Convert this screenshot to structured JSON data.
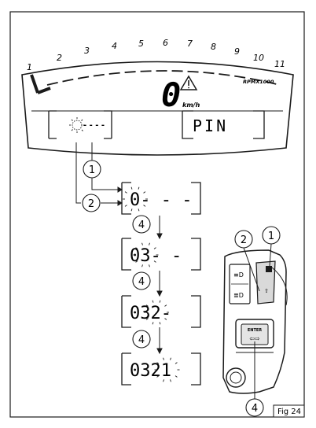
{
  "dashboard": {
    "rpm_scale": [
      "1",
      "2",
      "3",
      "4",
      "5",
      "6",
      "7",
      "8",
      "9",
      "10",
      "11"
    ],
    "rpm_unit": "RPMX1000",
    "speed_value": "0",
    "speed_unit": "km/h"
  },
  "left_display": {
    "text": "- - - -"
  },
  "right_display": {
    "text": "PIN"
  },
  "callouts": {
    "c1": "1",
    "c2": "2",
    "step4_a": "4",
    "step4_b": "4",
    "step4_c": "4",
    "switch_1": "1",
    "switch_2": "2",
    "switch_4": "4"
  },
  "sequence": [
    {
      "digits": "0- - -",
      "blink_index": 0
    },
    {
      "digits": "03- -",
      "blink_index": 1
    },
    {
      "digits": "032-",
      "blink_index": 2
    },
    {
      "digits": "0321",
      "blink_index": 3
    }
  ],
  "switch_labels": {
    "enter": "ENTER",
    "light_top": "≡D",
    "light_bottom": "≣D"
  },
  "figure_label": "Fig 24",
  "colors": {
    "line": "#1a1a1a",
    "gray": "#6e6e6e",
    "panel_bg": "#ffffff"
  }
}
